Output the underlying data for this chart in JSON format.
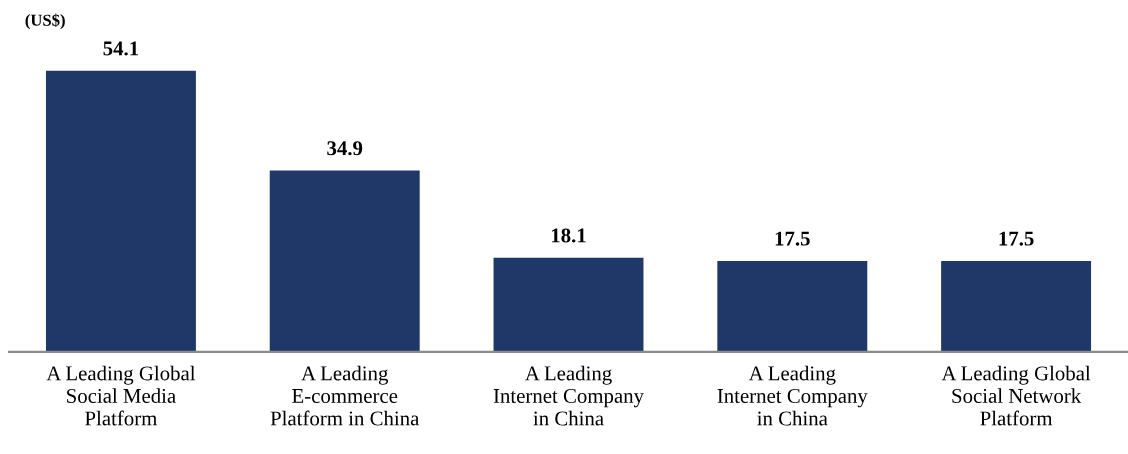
{
  "chart_data": {
    "type": "bar",
    "ylabel": "(US$)",
    "categories": [
      "A Leading Global\nSocial Media\nPlatform",
      "A Leading\nE-commerce\nPlatform in China",
      "A Leading\nInternet Company\nin China",
      "A Leading\nInternet Company\nin China",
      "A Leading Global\nSocial Network\nPlatform"
    ],
    "values": [
      54.1,
      34.9,
      18.1,
      17.5,
      17.5
    ],
    "color": "#1f3868",
    "data_labels": true,
    "grid": false
  }
}
